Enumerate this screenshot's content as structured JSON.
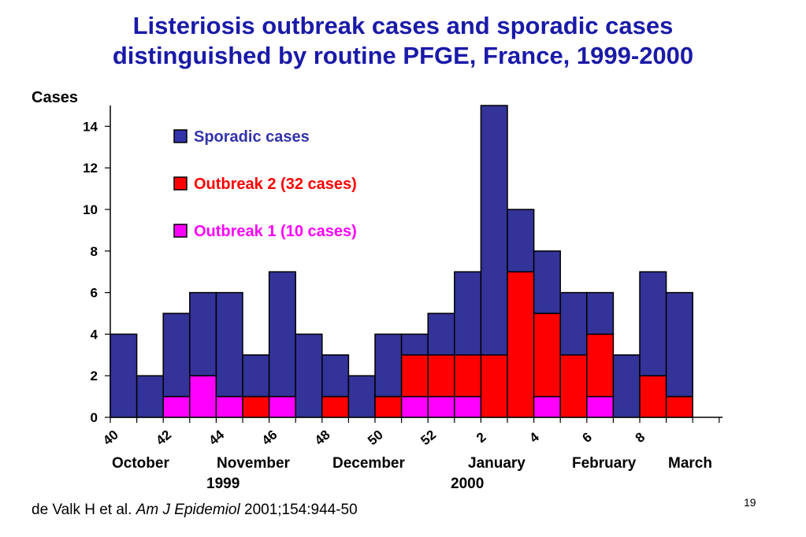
{
  "chart_data": {
    "type": "bar",
    "stacked": true,
    "title_line1": "Listeriosis outbreak cases and sporadic cases",
    "title_line2": "distinguished by routine PFGE, France, 1999-2000",
    "ylabel": "Cases",
    "ylim": [
      0,
      15
    ],
    "yticks": [
      0,
      2,
      4,
      6,
      8,
      10,
      12,
      14
    ],
    "weeks": [
      40,
      41,
      42,
      43,
      44,
      45,
      46,
      47,
      48,
      49,
      50,
      51,
      52,
      1,
      2,
      3,
      4,
      5,
      6,
      7,
      8,
      9
    ],
    "xtick_labels": [
      "40",
      "42",
      "44",
      "46",
      "48",
      "50",
      "52",
      "2",
      "4",
      "6",
      "8"
    ],
    "series": [
      {
        "name": "Outbreak 1 (10 cases)",
        "color": "#ff00ff",
        "values": [
          0,
          0,
          1,
          2,
          1,
          0,
          1,
          0,
          0,
          0,
          0,
          1,
          1,
          1,
          0,
          0,
          1,
          0,
          1,
          0,
          0,
          0
        ]
      },
      {
        "name": "Outbreak 2 (32 cases)",
        "color": "#ff0000",
        "values": [
          0,
          0,
          0,
          0,
          0,
          1,
          0,
          0,
          1,
          0,
          1,
          2,
          2,
          2,
          3,
          7,
          4,
          3,
          3,
          0,
          2,
          1
        ]
      },
      {
        "name": "Sporadic cases",
        "color": "#333399",
        "values": [
          4,
          2,
          4,
          4,
          5,
          2,
          6,
          4,
          2,
          2,
          3,
          1,
          2,
          4,
          12,
          3,
          3,
          3,
          2,
          3,
          5,
          5
        ]
      }
    ],
    "legend_order": [
      "Sporadic cases",
      "Outbreak 2 (32 cases)",
      "Outbreak 1 (10 cases)"
    ],
    "legend_colors": {
      "Sporadic cases": "#3333aa",
      "Outbreak 2 (32 cases)": "#ff0000",
      "Outbreak 1 (10 cases)": "#ff00ff"
    },
    "legend_placement": "top-left inside plot",
    "months": [
      "October",
      "November",
      "December",
      "January",
      "February",
      "March"
    ],
    "years": [
      "1999",
      "2000"
    ]
  },
  "citation": {
    "authors": "de Valk H et al.",
    "journal": "Am J Epidemiol",
    "ref": "2001;154:944-50"
  },
  "page_number": "19"
}
